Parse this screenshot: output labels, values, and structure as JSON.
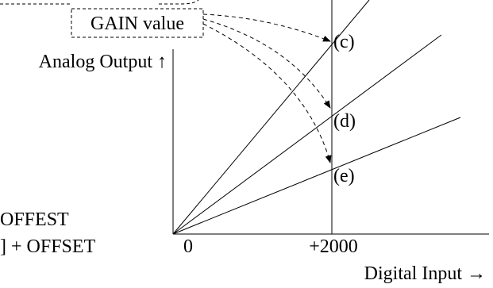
{
  "gain_box_label": "GAIN value",
  "y_axis_label": "Analog Output ↑",
  "x_axis_label": "Digital Input →",
  "x_origin_label": "0",
  "x_marker_label": "+2000",
  "line_labels": {
    "c": "(c)",
    "d": "(d)",
    "e": "(e)"
  },
  "left_text": {
    "line1": "OFFEST",
    "line2": "] + OFFSET"
  }
}
